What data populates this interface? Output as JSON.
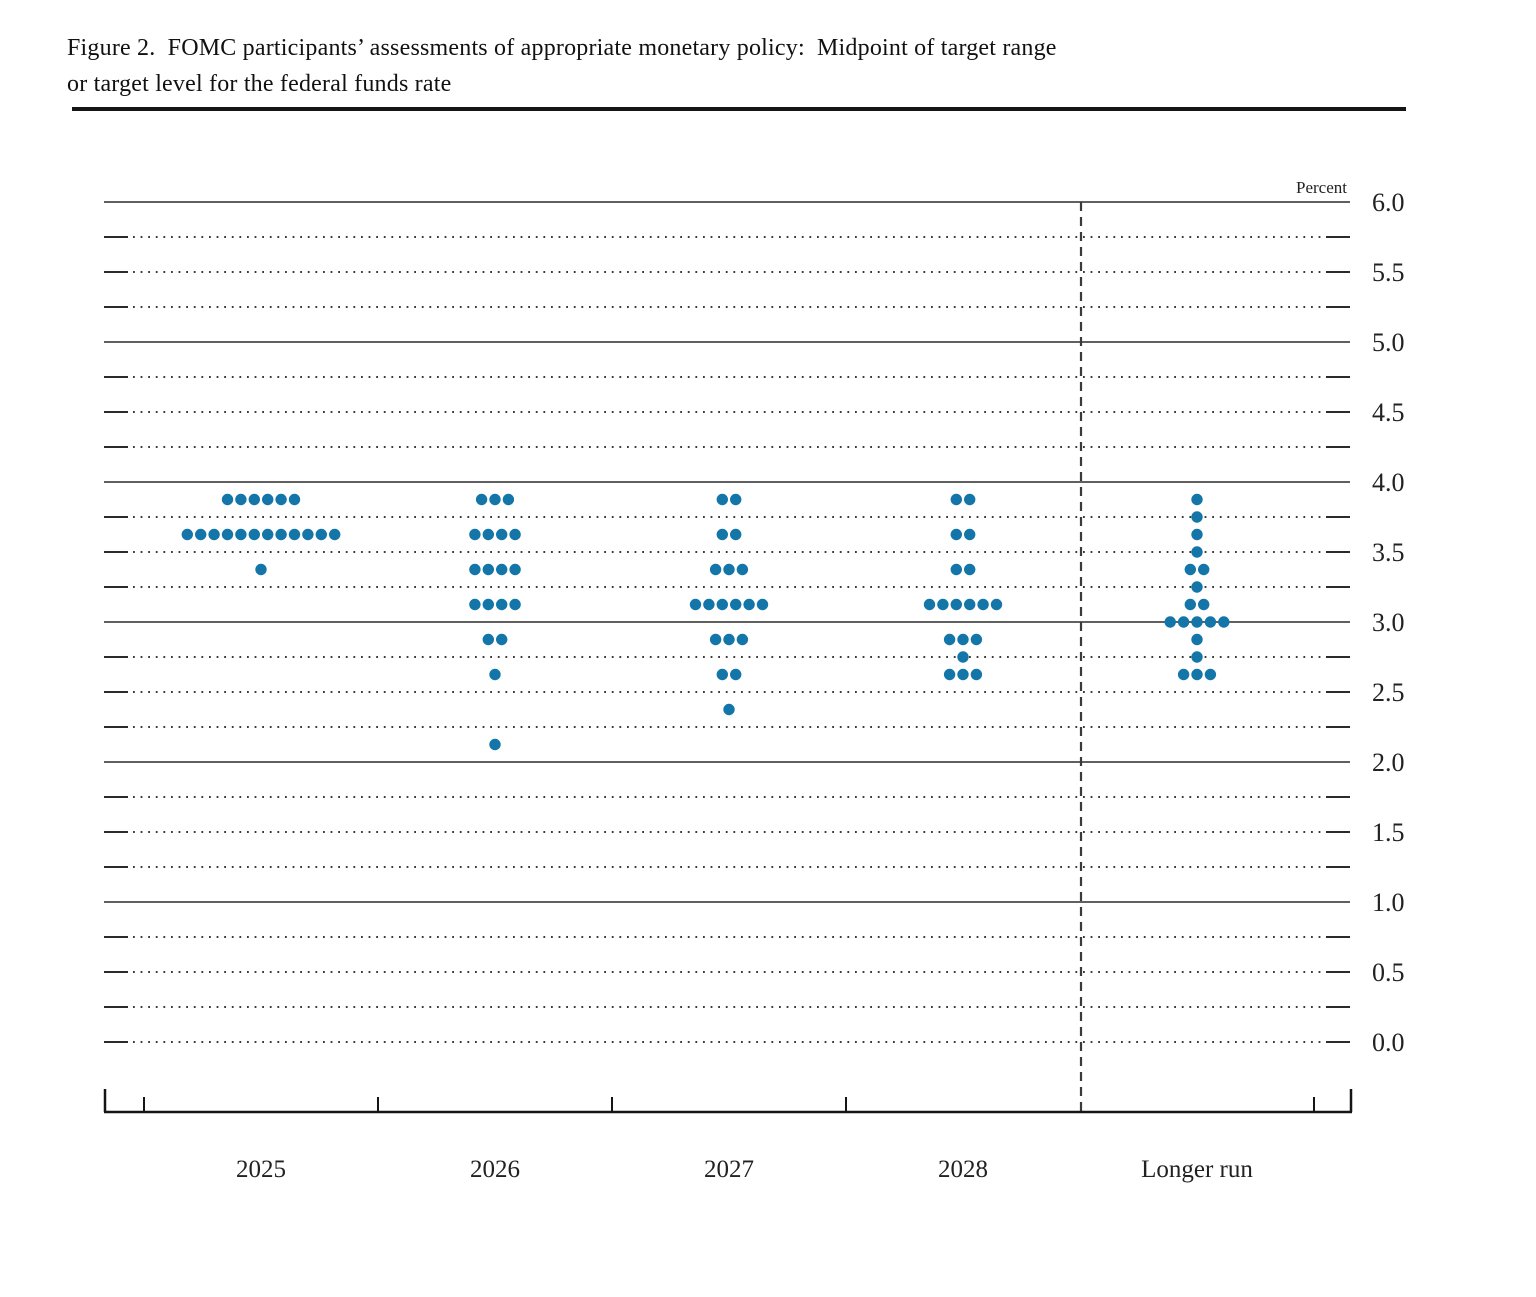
{
  "figure": {
    "title_line1": "Figure 2. FOMC participants’ assessments of appropriate monetary policy: Midpoint of target range",
    "title_line2": "or target level for the federal funds rate"
  },
  "axis": {
    "unit_label": "Percent",
    "y_tick_labels": [
      "6.0",
      "5.5",
      "5.0",
      "4.5",
      "4.0",
      "3.5",
      "3.0",
      "2.5",
      "2.0",
      "1.5",
      "1.0",
      "0.5",
      "0.0"
    ]
  },
  "chart_data": {
    "type": "scatter",
    "variant": "fomc-dot-plot",
    "title": "Figure 2. FOMC participants’ assessments of appropriate monetary policy: Midpoint of target range or target level for the federal funds rate",
    "ylabel": "Percent",
    "ylim": [
      0.0,
      6.0
    ],
    "grid_step": 0.25,
    "label_step": 0.5,
    "grid": "dotted-quarters-solid-integers",
    "legend_position": "none",
    "categories": [
      "2025",
      "2026",
      "2027",
      "2028",
      "Longer run"
    ],
    "separator_before_category": "Longer run",
    "series": [
      {
        "name": "2025",
        "dots": [
          {
            "value": 3.875,
            "count": 6
          },
          {
            "value": 3.625,
            "count": 12
          },
          {
            "value": 3.375,
            "count": 1
          }
        ]
      },
      {
        "name": "2026",
        "dots": [
          {
            "value": 3.875,
            "count": 3
          },
          {
            "value": 3.625,
            "count": 4
          },
          {
            "value": 3.375,
            "count": 4
          },
          {
            "value": 3.125,
            "count": 4
          },
          {
            "value": 2.875,
            "count": 2
          },
          {
            "value": 2.625,
            "count": 1
          },
          {
            "value": 2.125,
            "count": 1
          }
        ]
      },
      {
        "name": "2027",
        "dots": [
          {
            "value": 3.875,
            "count": 2
          },
          {
            "value": 3.625,
            "count": 2
          },
          {
            "value": 3.375,
            "count": 3
          },
          {
            "value": 3.125,
            "count": 6
          },
          {
            "value": 2.875,
            "count": 3
          },
          {
            "value": 2.625,
            "count": 2
          },
          {
            "value": 2.375,
            "count": 1
          }
        ]
      },
      {
        "name": "2028",
        "dots": [
          {
            "value": 3.875,
            "count": 2
          },
          {
            "value": 3.625,
            "count": 2
          },
          {
            "value": 3.375,
            "count": 2
          },
          {
            "value": 3.125,
            "count": 6
          },
          {
            "value": 2.875,
            "count": 3
          },
          {
            "value": 2.75,
            "count": 1
          },
          {
            "value": 2.625,
            "count": 3
          }
        ]
      },
      {
        "name": "Longer run",
        "dots": [
          {
            "value": 3.875,
            "count": 1
          },
          {
            "value": 3.75,
            "count": 1
          },
          {
            "value": 3.625,
            "count": 1
          },
          {
            "value": 3.5,
            "count": 1
          },
          {
            "value": 3.375,
            "count": 2
          },
          {
            "value": 3.25,
            "count": 1
          },
          {
            "value": 3.125,
            "count": 2
          },
          {
            "value": 3.0,
            "count": 5
          },
          {
            "value": 2.875,
            "count": 1
          },
          {
            "value": 2.75,
            "count": 1
          },
          {
            "value": 2.625,
            "count": 3
          }
        ]
      }
    ]
  },
  "colors": {
    "dot": "#1476a8",
    "grid_dotted": "#3a3a3a",
    "grid_solid": "#2b2b2b",
    "axis": "#151515",
    "text": "#222222"
  }
}
